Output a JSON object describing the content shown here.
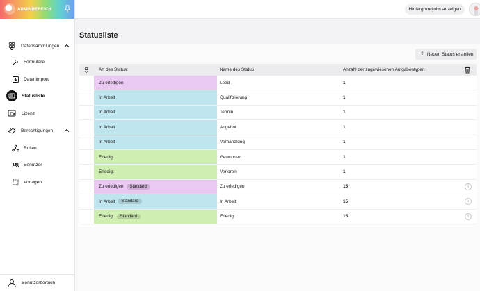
{
  "app": {
    "brand_title": "ADMINBEREICH"
  },
  "colors": {
    "todo": "#e9c8f1",
    "progress": "#bfe6ef",
    "done": "#cfeeb2"
  },
  "sidebar": {
    "items": [
      {
        "label": "Datensammlungen",
        "icon": "dataset-icon"
      },
      {
        "label": "Formulare",
        "icon": "wrench-icon"
      },
      {
        "label": "Datenimport",
        "icon": "import-icon"
      },
      {
        "label": "Statusliste",
        "icon": "status-list-icon"
      },
      {
        "label": "Lizenz",
        "icon": "license-icon"
      },
      {
        "label": "Berechtigungen",
        "icon": "permissions-icon"
      },
      {
        "label": "Rollen",
        "icon": "roles-icon"
      },
      {
        "label": "Benutzer",
        "icon": "users-icon"
      },
      {
        "label": "Vorlagen",
        "icon": "templates-icon"
      }
    ],
    "footer_label": "Benutzerbereich"
  },
  "topbar": {
    "jobs_button": "Hintergrundjobs anzeigen"
  },
  "page": {
    "title": "Statusliste",
    "new_button": "Neuen Status erstellen"
  },
  "table": {
    "headers": {
      "status_type": "Art des Status:",
      "status_name": "Name des Status",
      "task_count": "Anzahl der zugewiesenen Aufgabentypen"
    },
    "rows": [
      {
        "status": "Zu erledigen",
        "kind": "todo",
        "badge": "",
        "name": "Lead",
        "count": "1",
        "info": false
      },
      {
        "status": "In Arbeit",
        "kind": "progress",
        "badge": "",
        "name": "Qualifizierung",
        "count": "1",
        "info": false
      },
      {
        "status": "In Arbeit",
        "kind": "progress",
        "badge": "",
        "name": "Termin",
        "count": "1",
        "info": false
      },
      {
        "status": "In Arbeit",
        "kind": "progress",
        "badge": "",
        "name": "Angebot",
        "count": "1",
        "info": false
      },
      {
        "status": "In Arbeit",
        "kind": "progress",
        "badge": "",
        "name": "Verhandlung",
        "count": "1",
        "info": false
      },
      {
        "status": "Erledigt",
        "kind": "done",
        "badge": "",
        "name": "Gewonnen",
        "count": "1",
        "info": false
      },
      {
        "status": "Erledigt",
        "kind": "done",
        "badge": "",
        "name": "Verloren",
        "count": "1",
        "info": false
      },
      {
        "status": "Zu erledigen",
        "kind": "todo",
        "badge": "Standard",
        "name": "Zu erledigen",
        "count": "15",
        "info": true
      },
      {
        "status": "In Arbeit",
        "kind": "progress",
        "badge": "Standard",
        "name": "In Arbeit",
        "count": "15",
        "info": true
      },
      {
        "status": "Erledigt",
        "kind": "done",
        "badge": "Standard",
        "name": "Erledigt",
        "count": "15",
        "info": true
      }
    ]
  }
}
